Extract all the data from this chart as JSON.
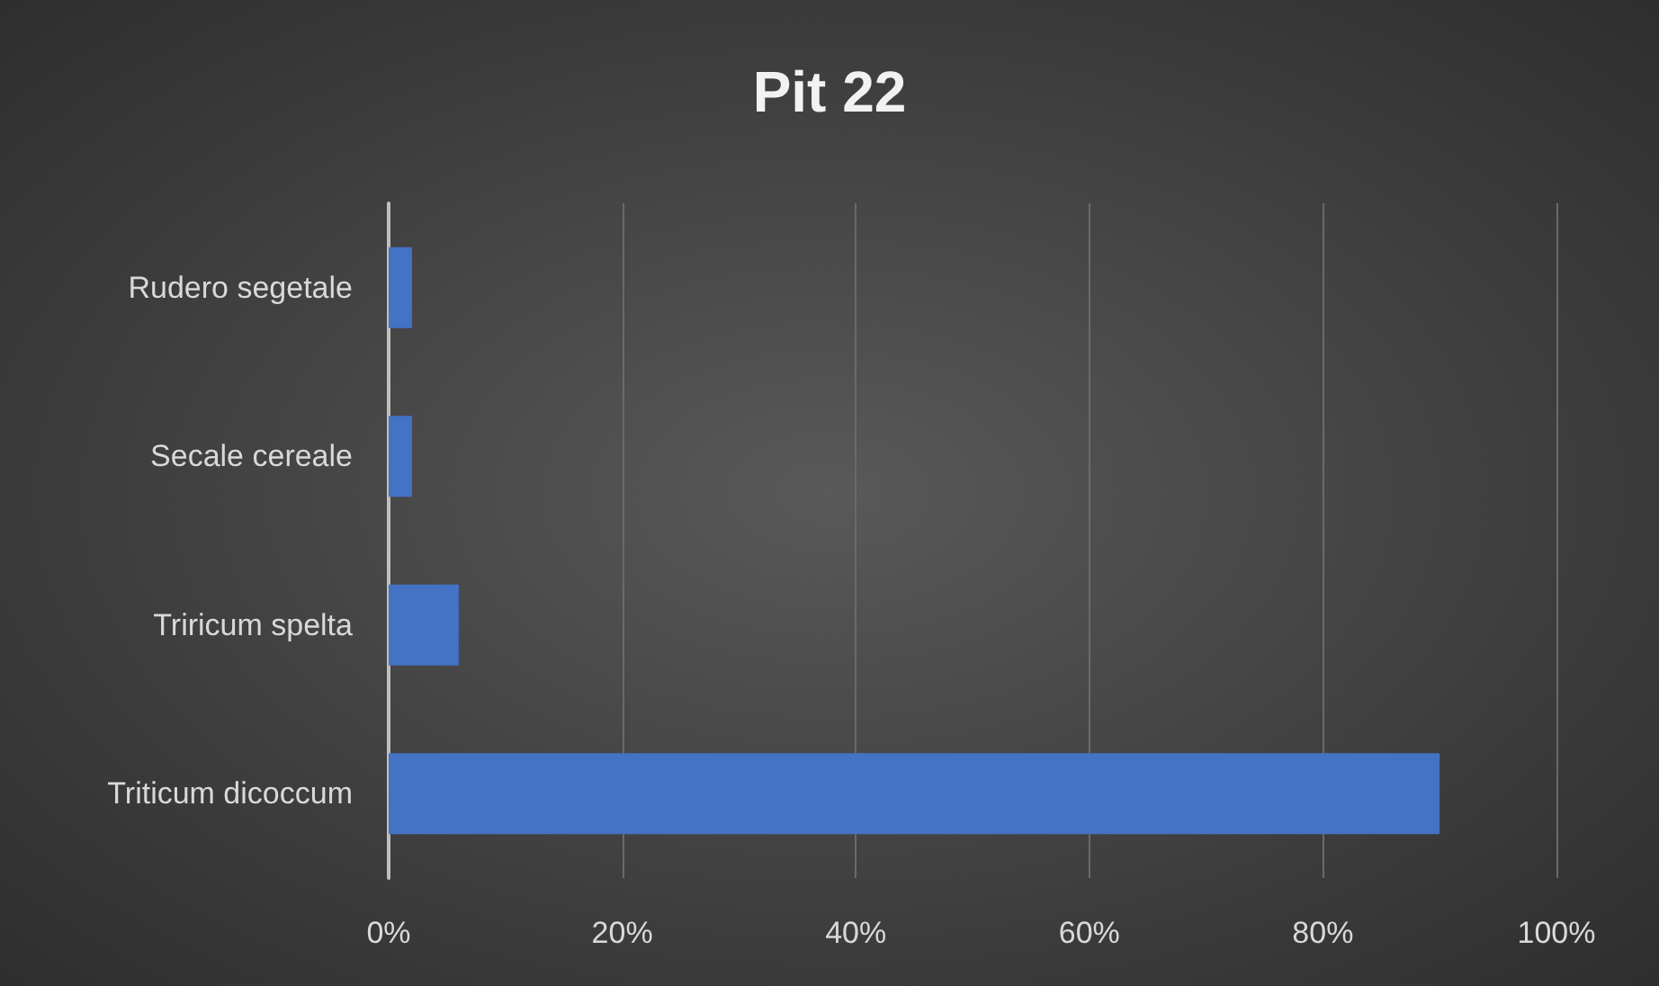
{
  "chart_data": {
    "type": "bar",
    "title": "Pit 22",
    "orientation": "horizontal",
    "categories": [
      "Rudero segetale",
      "Secale cereale",
      "Triricum spelta",
      "Triticum dicoccum"
    ],
    "values": [
      2,
      2,
      6,
      90
    ],
    "color": "#4472c4",
    "xlim": [
      0,
      100
    ],
    "xticks": [
      {
        "value": 0,
        "label": "0%"
      },
      {
        "value": 20,
        "label": "20%"
      },
      {
        "value": 40,
        "label": "40%"
      },
      {
        "value": 60,
        "label": "60%"
      },
      {
        "value": 80,
        "label": "80%"
      },
      {
        "value": 100,
        "label": "100%"
      }
    ],
    "grid": "x"
  }
}
